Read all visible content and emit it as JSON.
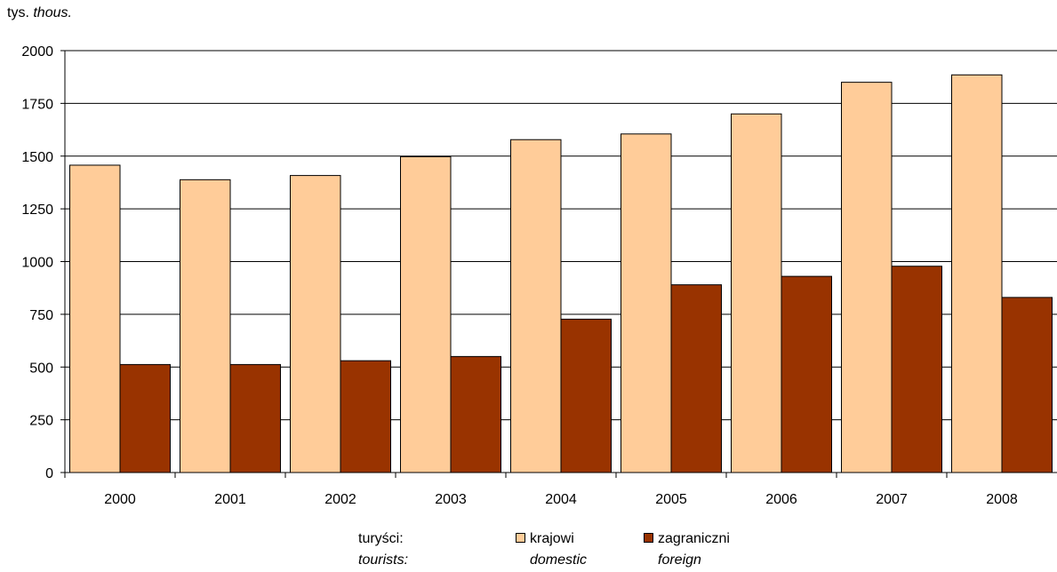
{
  "chart_data": {
    "type": "bar",
    "unit_label": "tys.",
    "unit_label_en": "thous.",
    "categories": [
      "2000",
      "2001",
      "2002",
      "2003",
      "2004",
      "2005",
      "2006",
      "2007",
      "2008"
    ],
    "ylim": [
      0,
      2000
    ],
    "yticks": [
      0,
      250,
      500,
      750,
      1000,
      1250,
      1500,
      1750,
      2000
    ],
    "grid": true,
    "legend_position": "bottom",
    "legend_prefix": "turyści:",
    "legend_prefix_en": "tourists:",
    "series": [
      {
        "name": "krajowi",
        "name_en": "domestic",
        "color": "#FFCC99",
        "values": [
          1457,
          1388,
          1408,
          1497,
          1578,
          1605,
          1700,
          1850,
          1885
        ]
      },
      {
        "name": "zagraniczni",
        "name_en": "foreign",
        "color": "#993300",
        "values": [
          512,
          512,
          530,
          550,
          727,
          890,
          930,
          978,
          830
        ]
      }
    ]
  }
}
